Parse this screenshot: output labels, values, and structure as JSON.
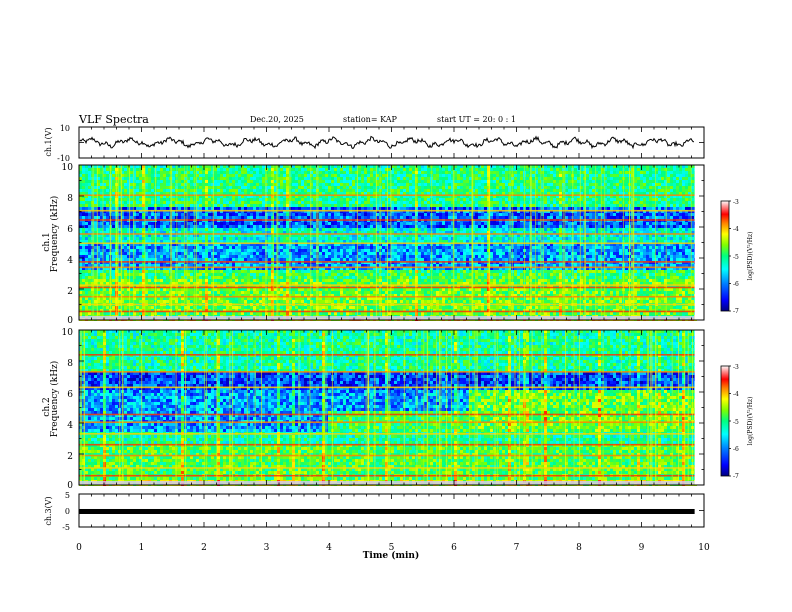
{
  "header": {
    "title": "VLF Spectra",
    "date": "Dec.20, 2025",
    "station": "station= KAP",
    "start": "start UT = 20: 0 : 1"
  },
  "colors": {
    "spectrogram_scale": [
      "#00007f",
      "#0000ff",
      "#0080ff",
      "#00ffff",
      "#00ff80",
      "#80ff00",
      "#ffff00",
      "#ff8000",
      "#ff0000",
      "#ff9090",
      "#ffffff"
    ],
    "trace": "#000000",
    "axis": "#000000"
  },
  "chart_data": [
    {
      "id": "ch1_waveform",
      "type": "line",
      "ylabel": "ch.1(V)",
      "ylim": [
        -10,
        10
      ],
      "yticks": [
        "10",
        "-10"
      ],
      "xlim": [
        0,
        10
      ],
      "trace_end_min": 9.85,
      "wave_mean": 0,
      "wave_amplitude": 4
    },
    {
      "id": "ch1_spectrogram",
      "type": "heatmap",
      "ylabel_channel": "ch.1",
      "ylabel": "Frequency (kHz)",
      "ylim": [
        0,
        10
      ],
      "yticks": [
        "0",
        "2",
        "4",
        "6",
        "8",
        "10"
      ],
      "xlim": [
        0,
        10
      ],
      "data_end_min": 9.85,
      "colorbar": {
        "label": "log(PSD)(V²/Hz)",
        "range": [
          -7,
          -3
        ],
        "ticks": [
          "-3",
          "-4",
          "-5",
          "-6",
          "-7"
        ]
      },
      "bands": [
        {
          "from_khz": 0,
          "to_khz": 0.3,
          "log_psd": -4.6
        },
        {
          "from_khz": 0.3,
          "to_khz": 2.8,
          "log_psd": -5.1
        },
        {
          "from_khz": 2.8,
          "to_khz": 3.4,
          "log_psd": -5.3
        },
        {
          "from_khz": 3.4,
          "to_khz": 5.0,
          "log_psd": -6.1
        },
        {
          "from_khz": 5.0,
          "to_khz": 6.0,
          "log_psd": -5.7
        },
        {
          "from_khz": 6.0,
          "to_khz": 7.3,
          "log_psd": -6.3
        },
        {
          "from_khz": 7.3,
          "to_khz": 10.0,
          "log_psd": -5.4
        }
      ],
      "lines_khz": [
        0.55,
        1.0,
        1.5,
        2.1,
        2.25,
        3.4,
        3.75,
        4.95,
        5.55,
        6.45,
        7.05,
        8.05
      ]
    },
    {
      "id": "ch2_spectrogram",
      "type": "heatmap",
      "ylabel_channel": "ch.2",
      "ylabel": "Frequency (kHz)",
      "ylim": [
        0,
        10
      ],
      "yticks": [
        "0",
        "2",
        "4",
        "6",
        "8",
        "10"
      ],
      "xlim": [
        0,
        10
      ],
      "data_end_min": 9.85,
      "colorbar": {
        "label": "log(PSD)(V²/Hz)",
        "range": [
          -7,
          -3
        ],
        "ticks": [
          "-3",
          "-4",
          "-5",
          "-6",
          "-7"
        ]
      },
      "bands": [
        {
          "from_khz": 0,
          "to_khz": 0.4,
          "log_psd": -4.8
        },
        {
          "from_khz": 0.4,
          "to_khz": 2.8,
          "log_psd": -5.2
        },
        {
          "from_khz": 2.8,
          "to_khz": 3.6,
          "log_psd": -5.5
        },
        {
          "from_khz": 3.6,
          "to_khz": 6.2,
          "log_psd": -6.1
        },
        {
          "from_khz": 6.2,
          "to_khz": 7.4,
          "log_psd": -6.4
        },
        {
          "from_khz": 7.4,
          "to_khz": 10.0,
          "log_psd": -5.5
        }
      ],
      "brightening": [
        {
          "from_min": 3.95,
          "from_khz": 3.6,
          "to_khz": 4.9,
          "log_psd": -5.3
        },
        {
          "from_min": 6.2,
          "from_khz": 3.6,
          "to_khz": 6.2,
          "log_psd": -5.1
        }
      ],
      "lines_khz": [
        0.6,
        1.1,
        1.9,
        2.6,
        3.3,
        4.05,
        4.55,
        6.3,
        7.3,
        8.4
      ]
    },
    {
      "id": "ch3_waveform",
      "type": "line",
      "ylabel": "ch.3(V)",
      "ylim": [
        -5,
        5
      ],
      "yticks": [
        "5",
        "0",
        "-5"
      ],
      "xlim": [
        0,
        10
      ],
      "trace_end_min": 9.85,
      "level": -0.3
    }
  ],
  "time_axis": {
    "label": "Time (min)",
    "range": [
      0,
      10
    ],
    "ticks": [
      "0",
      "1",
      "2",
      "3",
      "4",
      "5",
      "6",
      "7",
      "8",
      "9",
      "10"
    ]
  }
}
